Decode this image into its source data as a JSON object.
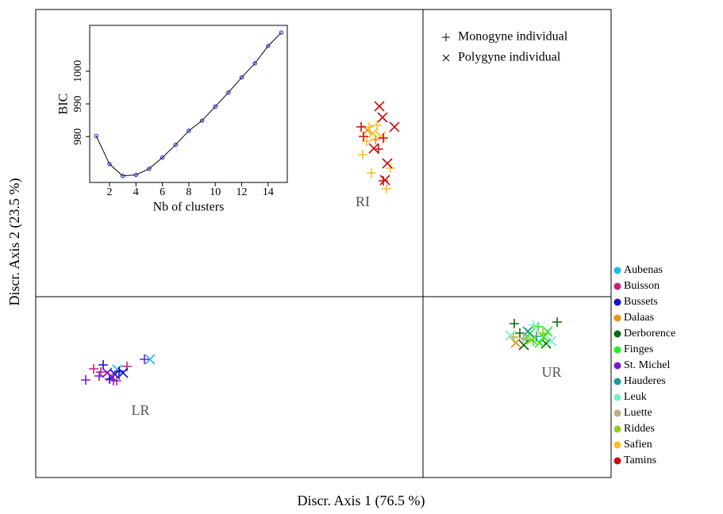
{
  "chart_data": [
    {
      "type": "scatter",
      "xlabel": "Discr. Axis 1 (76.5 %)",
      "ylabel": "Discr. Axis 2 (23.5 %)",
      "xlim": [
        -9.76,
        4.74
      ],
      "ylim": [
        -4.56,
        7.24
      ],
      "zero_lines": true,
      "annotations": [
        "RI",
        "LR",
        "UR"
      ],
      "marker_legend": [
        {
          "symbol": "plus",
          "label": "Monogyne individual"
        },
        {
          "symbol": "cross",
          "label": "Polygyne individual"
        }
      ],
      "series": [
        {
          "name": "Aubenas",
          "color": "#22b8f0",
          "x": [
            -6.88,
            -7.7
          ],
          "y": [
            -1.58,
            -1.84
          ],
          "markers": [
            "cross",
            "cross"
          ]
        },
        {
          "name": "Buisson",
          "color": "#c41f7c",
          "x": [
            -8.3,
            -8.12,
            -7.72,
            -7.46,
            -7.86
          ],
          "y": [
            -1.82,
            -1.9,
            -2.12,
            -1.76,
            -2.0
          ],
          "markers": [
            "plus",
            "plus",
            "plus",
            "plus",
            "cross"
          ]
        },
        {
          "name": "Bussets",
          "color": "#1414c0",
          "x": [
            -8.06,
            -7.9,
            -7.66,
            -7.76,
            -7.56
          ],
          "y": [
            -1.72,
            -2.08,
            -1.88,
            -1.96,
            -1.92
          ],
          "markers": [
            "plus",
            "plus",
            "plus",
            "cross",
            "cross"
          ]
        },
        {
          "name": "Dalaas",
          "color": "#f0900f",
          "x": [
            -1.4,
            -1.2,
            2.34,
            2.28
          ],
          "y": [
            4.2,
            3.96,
            -1.16,
            -1.02
          ],
          "markers": [
            "cross",
            "plus",
            "cross",
            "plus"
          ]
        },
        {
          "name": "Derborence",
          "color": "#0a6a0a",
          "x": [
            2.3,
            3.38,
            2.54,
            3.1,
            2.44
          ],
          "y": [
            -0.68,
            -0.64,
            -1.22,
            -1.18,
            -0.92
          ],
          "markers": [
            "plus",
            "plus",
            "cross",
            "cross",
            "plus"
          ]
        },
        {
          "name": "Finges",
          "color": "#22ee22",
          "x": [
            2.7,
            2.9,
            3.04,
            2.78,
            3.14,
            2.6,
            2.94
          ],
          "y": [
            -0.92,
            -0.76,
            -1.02,
            -1.12,
            -0.88,
            -1.08,
            -1.16
          ],
          "markers": [
            "cross",
            "plus",
            "cross",
            "plus",
            "cross",
            "plus",
            "cross"
          ]
        },
        {
          "name": "St. Michel",
          "color": "#7a1ad0",
          "x": [
            -8.5,
            -8.16,
            -7.96,
            -7.02,
            -7.8
          ],
          "y": [
            -2.1,
            -2.0,
            -1.92,
            -1.58,
            -2.12
          ],
          "markers": [
            "plus",
            "plus",
            "cross",
            "plus",
            "plus"
          ]
        },
        {
          "name": "Hauderes",
          "color": "#1a9a9a",
          "x": [
            2.86,
            2.64
          ],
          "y": [
            -1.0,
            -0.88
          ],
          "markers": [
            "plus",
            "cross"
          ]
        },
        {
          "name": "Leuk",
          "color": "#70eed0",
          "x": [
            2.2,
            3.24,
            2.78
          ],
          "y": [
            -0.98,
            -1.12,
            -0.72
          ],
          "markers": [
            "cross",
            "cross",
            "plus"
          ]
        },
        {
          "name": "Luette",
          "color": "#b8b080",
          "x": [
            2.54
          ],
          "y": [
            -1.04
          ],
          "markers": [
            "plus"
          ]
        },
        {
          "name": "Riddes",
          "color": "#90d020",
          "x": [
            2.74,
            3.02
          ],
          "y": [
            -1.08,
            -0.92
          ],
          "markers": [
            "cross",
            "plus"
          ]
        },
        {
          "name": "Safien",
          "color": "#f8c020",
          "x": [
            -1.36,
            -1.26,
            -1.42,
            -1.06,
            -1.52,
            -1.3,
            -0.92,
            -0.82,
            -1.16
          ],
          "y": [
            4.28,
            4.12,
            3.92,
            4.04,
            3.58,
            3.12,
            2.72,
            3.24,
            4.32
          ],
          "markers": [
            "plus",
            "cross",
            "plus",
            "cross",
            "plus",
            "plus",
            "plus",
            "plus",
            "plus"
          ]
        },
        {
          "name": "Tamins",
          "color": "#cc1010",
          "x": [
            -1.1,
            -1.02,
            -0.72,
            -1.24,
            -0.9,
            -0.96,
            -1.0,
            -1.56,
            -1.12,
            -1.0,
            -1.5
          ],
          "y": [
            4.8,
            4.52,
            4.28,
            3.74,
            3.36,
            2.94,
            4.0,
            4.28,
            3.72,
            2.92,
            4.04
          ],
          "markers": [
            "cross",
            "cross",
            "cross",
            "cross",
            "cross",
            "cross",
            "plus",
            "plus",
            "plus",
            "plus",
            "plus"
          ]
        }
      ]
    },
    {
      "type": "line",
      "xlabel": "Nb of clusters",
      "ylabel": "BIC",
      "x": [
        1,
        2,
        3,
        4,
        5,
        6,
        7,
        8,
        9,
        10,
        11,
        12,
        13,
        14,
        15
      ],
      "values": [
        980.2,
        971.6,
        968.0,
        968.3,
        970.2,
        973.6,
        977.5,
        981.8,
        984.9,
        989.2,
        993.5,
        998.1,
        1002.4,
        1007.7,
        1011.8
      ],
      "color": "#000000",
      "marker_color": "#1a1ad0",
      "xlim": [
        0.5,
        15.45
      ],
      "ylim": [
        966,
        1014
      ],
      "xticks": [
        2,
        4,
        6,
        8,
        10,
        12,
        14
      ],
      "yticks": [
        980,
        990,
        1000
      ]
    }
  ]
}
